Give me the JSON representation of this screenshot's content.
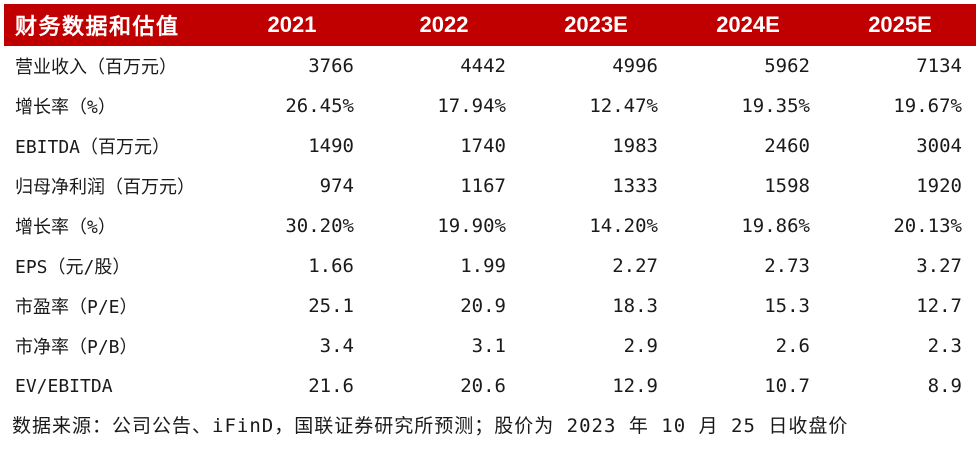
{
  "colors": {
    "header_background": "#C00000",
    "header_text": "#FFFFFF",
    "body_text": "#1A1A1A"
  },
  "table": {
    "header": {
      "title": "财务数据和估值",
      "columns": [
        "2021",
        "2022",
        "2023E",
        "2024E",
        "2025E"
      ]
    },
    "rows": [
      {
        "label": "营业收入（百万元）",
        "values": [
          "3766",
          "4442",
          "4996",
          "5962",
          "7134"
        ]
      },
      {
        "label": "增长率（%）",
        "values": [
          "26.45%",
          "17.94%",
          "12.47%",
          "19.35%",
          "19.67%"
        ]
      },
      {
        "label": "EBITDA（百万元）",
        "values": [
          "1490",
          "1740",
          "1983",
          "2460",
          "3004"
        ]
      },
      {
        "label": "归母净利润（百万元）",
        "values": [
          "974",
          "1167",
          "1333",
          "1598",
          "1920"
        ]
      },
      {
        "label": "增长率（%）",
        "values": [
          "30.20%",
          "19.90%",
          "14.20%",
          "19.86%",
          "20.13%"
        ]
      },
      {
        "label": "EPS（元/股）",
        "values": [
          "1.66",
          "1.99",
          "2.27",
          "2.73",
          "3.27"
        ]
      },
      {
        "label": "市盈率（P/E）",
        "values": [
          "25.1",
          "20.9",
          "18.3",
          "15.3",
          "12.7"
        ]
      },
      {
        "label": "市净率（P/B）",
        "values": [
          "3.4",
          "3.1",
          "2.9",
          "2.6",
          "2.3"
        ]
      },
      {
        "label": "EV/EBITDA",
        "values": [
          "21.6",
          "20.6",
          "12.9",
          "10.7",
          "8.9"
        ]
      }
    ],
    "footer": "数据来源：公司公告、iFinD，国联证券研究所预测；股价为 2023 年 10 月 25 日收盘价"
  }
}
